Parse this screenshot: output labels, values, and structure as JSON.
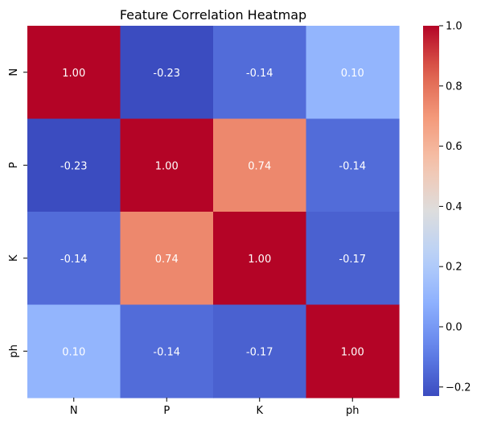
{
  "chart_data": {
    "type": "heatmap",
    "title": "Feature Correlation Heatmap",
    "xlabel": "",
    "ylabel": "",
    "x_categories": [
      "N",
      "P",
      "K",
      "ph"
    ],
    "y_categories": [
      "N",
      "P",
      "K",
      "ph"
    ],
    "values": [
      [
        1.0,
        -0.23,
        -0.14,
        0.1
      ],
      [
        -0.23,
        1.0,
        0.74,
        -0.14
      ],
      [
        -0.14,
        0.74,
        1.0,
        -0.17
      ],
      [
        0.1,
        -0.14,
        -0.17,
        1.0
      ]
    ],
    "cell_labels": [
      [
        "1.00",
        "-0.23",
        "-0.14",
        "0.10"
      ],
      [
        "-0.23",
        "1.00",
        "0.74",
        "-0.14"
      ],
      [
        "-0.14",
        "0.74",
        "1.00",
        "-0.17"
      ],
      [
        "0.10",
        "-0.14",
        "-0.17",
        "1.00"
      ]
    ],
    "colormap": "coolwarm",
    "colorbar": {
      "range": [
        -0.23,
        1.0
      ],
      "ticks": [
        -0.2,
        0.0,
        0.2,
        0.4,
        0.6,
        0.8,
        1.0
      ],
      "tick_labels": [
        "−0.2",
        "0.0",
        "0.2",
        "0.4",
        "0.6",
        "0.8",
        "1.0"
      ]
    },
    "colors": {
      "low": "#3b4cc0",
      "mid": "#dddddd",
      "high": "#b40426",
      "annotation_text": "#ffffff",
      "axis_text": "#000000"
    },
    "grid": false,
    "legend": "colorbar-right"
  }
}
